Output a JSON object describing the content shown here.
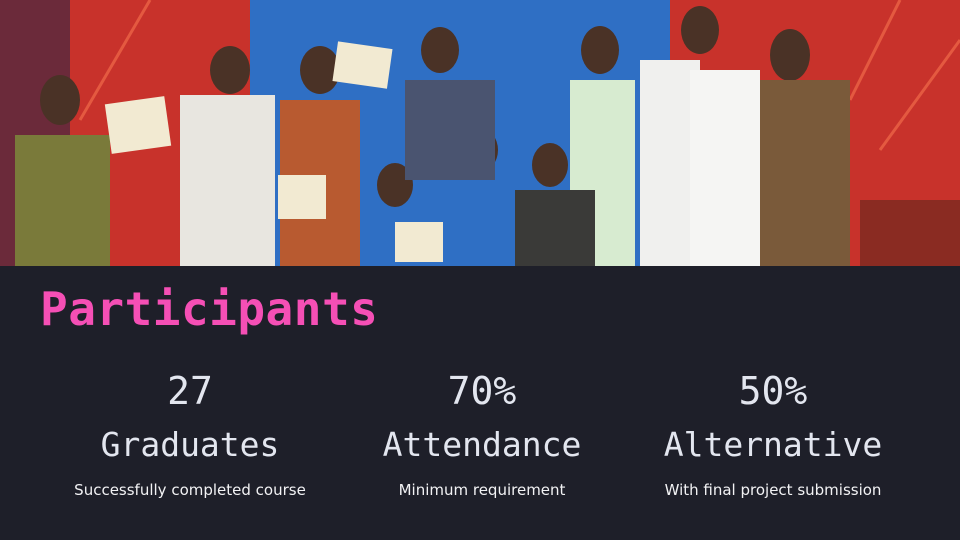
{
  "title": "Participants",
  "stats": [
    {
      "value": "27",
      "label": "Graduates",
      "note": "Successfully completed course"
    },
    {
      "value": "70%",
      "label": "Attendance",
      "note": "Minimum requirement"
    },
    {
      "value": "50%",
      "label": "Alternative",
      "note": "With final project submission"
    }
  ]
}
